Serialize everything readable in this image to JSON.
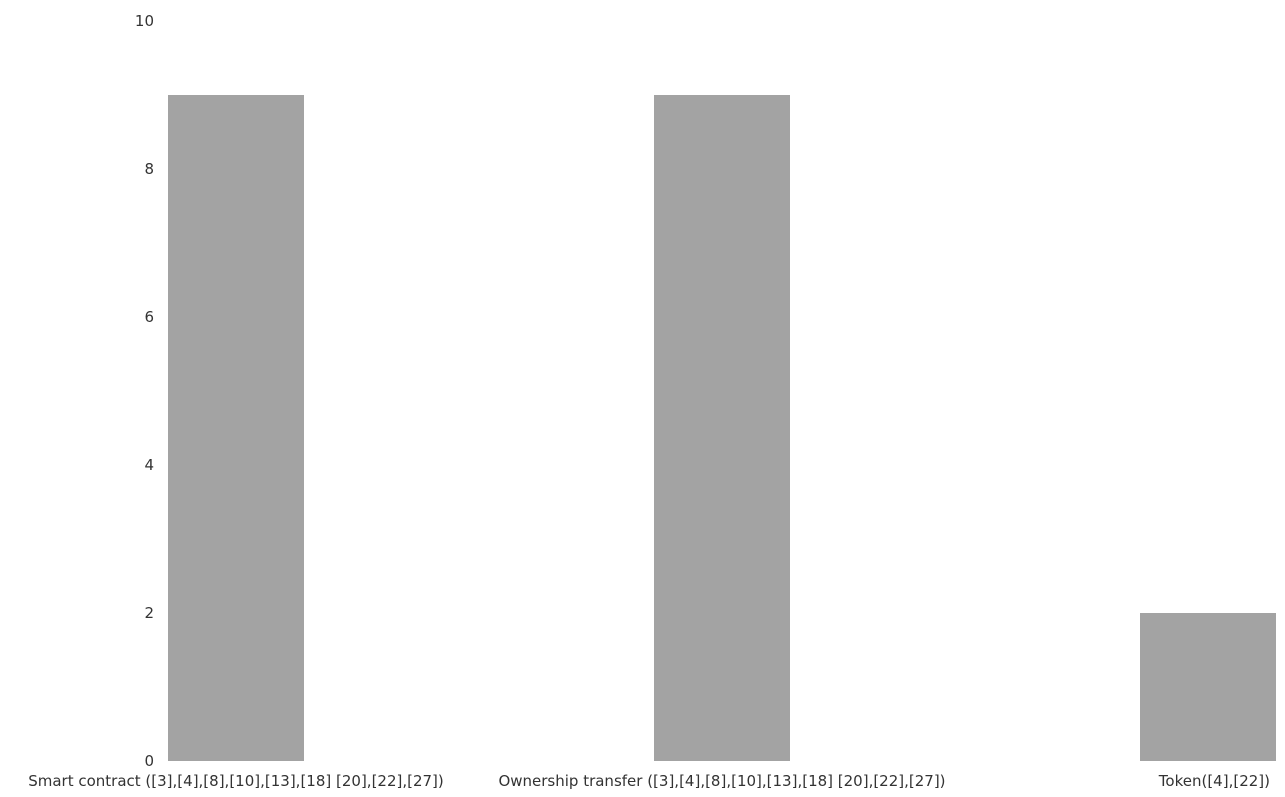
{
  "colors": {
    "bar": "#a3a3a3",
    "text": "#333333",
    "background": "#ffffff"
  },
  "chart_data": {
    "type": "bar",
    "title": "",
    "xlabel": "",
    "ylabel": "",
    "categories": [
      "Smart contract ([3],[4],[8],[10],[13],[18] [20],[22],[27])",
      "Ownership transfer ([3],[4],[8],[10],[13],[18] [20],[22],[27])",
      "Token([4],[22])"
    ],
    "values": [
      9,
      9,
      2
    ],
    "ylim": [
      0,
      10
    ],
    "yticks": [
      "0",
      "2",
      "4",
      "6",
      "8",
      "10"
    ],
    "grid": false,
    "legend": "none"
  }
}
